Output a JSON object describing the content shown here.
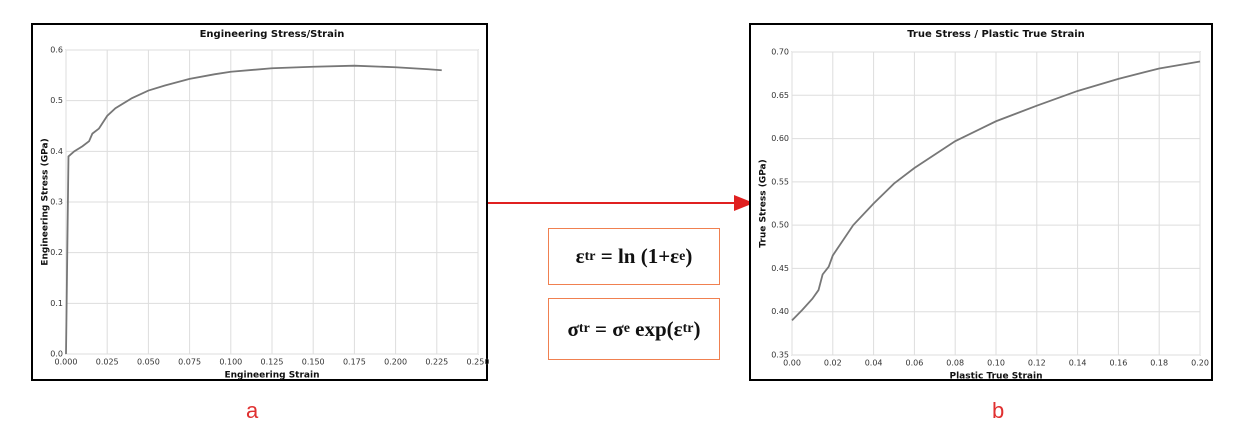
{
  "chart_data": [
    {
      "type": "line",
      "title": "Engineering Stress/Strain",
      "x_label": "Engineering Strain",
      "y_label": "Engineering Stress (GPa)",
      "xlim": [
        0,
        0.25
      ],
      "ylim": [
        0,
        0.6
      ],
      "xticks": [
        {
          "value": 0,
          "label": "0.000"
        },
        {
          "value": 0.025,
          "label": "0.025"
        },
        {
          "value": 0.05,
          "label": "0.050"
        },
        {
          "value": 0.075,
          "label": "0.075"
        },
        {
          "value": 0.1,
          "label": "0.100"
        },
        {
          "value": 0.125,
          "label": "0.125"
        },
        {
          "value": 0.15,
          "label": "0.150"
        },
        {
          "value": 0.175,
          "label": "0.175"
        },
        {
          "value": 0.2,
          "label": "0.200"
        },
        {
          "value": 0.225,
          "label": "0.225"
        },
        {
          "value": 0.25,
          "label": "0.250"
        }
      ],
      "yticks": [
        {
          "value": 0,
          "label": "0.0"
        },
        0.1,
        0.2,
        0.3,
        0.4,
        0.5,
        0.6
      ],
      "grid": true,
      "series": [
        {
          "color": "#777777",
          "x": [
            0,
            0.0015,
            0.005,
            0.01,
            0.014,
            0.016,
            0.02,
            0.025,
            0.03,
            0.04,
            0.05,
            0.06,
            0.075,
            0.09,
            0.1,
            0.125,
            0.15,
            0.175,
            0.2,
            0.22,
            0.228
          ],
          "values": [
            0,
            0.39,
            0.4,
            0.41,
            0.42,
            0.435,
            0.445,
            0.47,
            0.485,
            0.505,
            0.52,
            0.53,
            0.543,
            0.552,
            0.557,
            0.564,
            0.567,
            0.569,
            0.566,
            0.562,
            0.56
          ]
        }
      ]
    },
    {
      "type": "line",
      "title": "True Stress / Plastic True Strain",
      "x_label": "Plastic True Strain",
      "y_label": "True Stress (GPa)",
      "xlim": [
        0,
        0.2
      ],
      "ylim": [
        0.35,
        0.7
      ],
      "xticks": [
        {
          "value": 0,
          "label": "0.00"
        },
        0.02,
        0.04,
        0.06,
        0.08,
        {
          "value": 0.1,
          "label": "0.10"
        },
        0.12,
        0.14,
        0.16,
        0.18,
        {
          "value": 0.2,
          "label": "0.20"
        }
      ],
      "yticks": [
        0.35,
        {
          "value": 0.4,
          "label": "0.40"
        },
        0.45,
        {
          "value": 0.5,
          "label": "0.50"
        },
        0.55,
        {
          "value": 0.6,
          "label": "0.60"
        },
        0.65,
        {
          "value": 0.7,
          "label": "0.70"
        }
      ],
      "grid": true,
      "series": [
        {
          "color": "#777777",
          "x": [
            0,
            0.005,
            0.01,
            0.013,
            0.015,
            0.018,
            0.02,
            0.03,
            0.04,
            0.05,
            0.06,
            0.08,
            0.1,
            0.12,
            0.14,
            0.16,
            0.18,
            0.2
          ],
          "values": [
            0.39,
            0.402,
            0.415,
            0.425,
            0.443,
            0.452,
            0.465,
            0.5,
            0.525,
            0.548,
            0.566,
            0.597,
            0.62,
            0.638,
            0.655,
            0.669,
            0.681,
            0.689
          ]
        }
      ]
    }
  ],
  "formulas": [
    [
      {
        "text": "ε"
      },
      {
        "text": "tr",
        "sub": true
      },
      {
        "text": " = ln (1+ε"
      },
      {
        "text": "e",
        "sub": true
      },
      {
        "text": ")"
      }
    ],
    [
      {
        "text": "σ"
      },
      {
        "text": "tr",
        "sub": true
      },
      {
        "text": " = σ"
      },
      {
        "text": "e",
        "sub": true
      },
      {
        "text": " exp(ε"
      },
      {
        "text": "tr",
        "sub": true
      },
      {
        "text": ")"
      }
    ]
  ],
  "panel_labels": [
    "a",
    "b"
  ]
}
